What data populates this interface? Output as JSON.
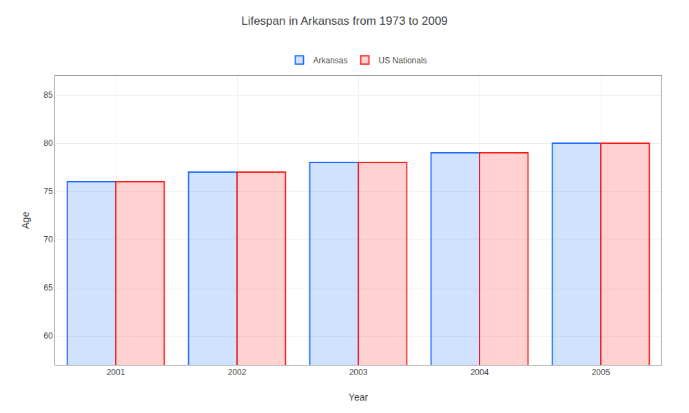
{
  "chart_data": {
    "type": "bar",
    "title": "Lifespan in Arkansas from 1973 to 2009",
    "x_label": "Year",
    "y_label": "Age",
    "categories": [
      "2001",
      "2002",
      "2003",
      "2004",
      "2005"
    ],
    "series": [
      {
        "name": "Arkansas",
        "color": "#1a6cff",
        "values": [
          76,
          77,
          78,
          79,
          80
        ]
      },
      {
        "name": "US Nationals",
        "color": "#ff1a1a",
        "values": [
          76,
          77,
          78,
          79,
          80
        ]
      }
    ],
    "ylim": [
      57,
      87
    ],
    "yticks": [
      60,
      65,
      70,
      75,
      80,
      85
    ],
    "grid": true,
    "legend": "top"
  }
}
